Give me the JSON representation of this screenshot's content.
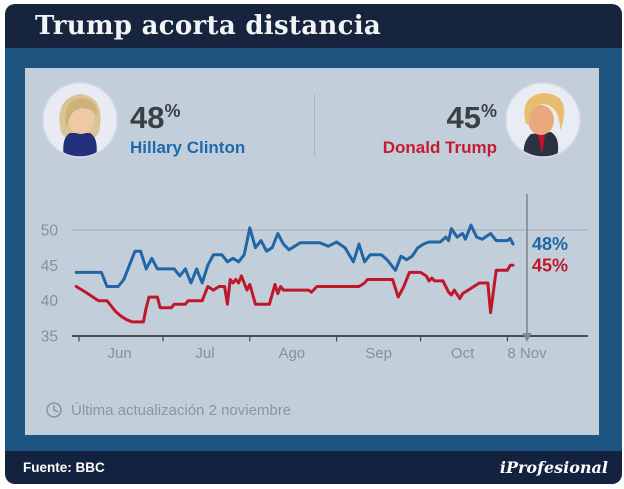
{
  "header": {
    "title": "Trump acorta distancia"
  },
  "candidates": {
    "clinton": {
      "pct": "48",
      "pct_unit": "%",
      "name": "Hillary Clinton",
      "color": "#1d6bad"
    },
    "trump": {
      "pct": "45",
      "pct_unit": "%",
      "name": "Donald Trump",
      "color": "#c41d31"
    }
  },
  "update_note": "Última actualización 2 noviembre",
  "source_bar": {
    "source_label": "Fuente: BBC",
    "brand": "iProfesional"
  },
  "palette": {
    "titlebar": "#16243e",
    "body": "#1e5480",
    "panel": "#c3cedb",
    "sourcebar": "#13233f",
    "clinton_line": "#2166a6",
    "trump_line": "#c0182b"
  },
  "chart_data": {
    "type": "line",
    "title": "",
    "xlabel": "",
    "ylabel": "",
    "ylim": [
      35,
      52
    ],
    "y_ticks": [
      35,
      40,
      45,
      50
    ],
    "gridlines": [
      50
    ],
    "x_ticks_days": [
      2,
      32,
      63,
      94,
      124,
      155
    ],
    "x_labels": [
      {
        "day": 16.5,
        "text": "Jun"
      },
      {
        "day": 47,
        "text": "Jul"
      },
      {
        "day": 78,
        "text": "Ago"
      },
      {
        "day": 109,
        "text": "Sep"
      },
      {
        "day": 139,
        "text": "Oct"
      },
      {
        "day": 162,
        "text": "8 Nov"
      }
    ],
    "marker_day": 162,
    "style": {
      "grid": "#aab5c4",
      "axis": "#4a4e54",
      "tick_text": "#8a909a",
      "marker": "#7e8893"
    },
    "series": [
      {
        "name": "Hillary Clinton",
        "color": "#2166a6",
        "end_label": "48%",
        "points": [
          [
            1,
            44
          ],
          [
            10,
            44
          ],
          [
            12,
            42
          ],
          [
            16,
            42
          ],
          [
            18,
            43
          ],
          [
            20,
            45
          ],
          [
            22,
            47
          ],
          [
            24,
            47
          ],
          [
            26,
            44.5
          ],
          [
            28,
            46
          ],
          [
            30,
            44.5
          ],
          [
            36,
            44.5
          ],
          [
            38,
            43.5
          ],
          [
            40,
            44.5
          ],
          [
            42,
            42.5
          ],
          [
            44,
            44.5
          ],
          [
            46,
            42.5
          ],
          [
            48,
            45
          ],
          [
            50,
            46.5
          ],
          [
            53,
            46.5
          ],
          [
            55,
            45.5
          ],
          [
            57,
            46
          ],
          [
            59,
            45.5
          ],
          [
            61,
            46.5
          ],
          [
            63,
            50.3
          ],
          [
            65,
            47.5
          ],
          [
            67,
            48.5
          ],
          [
            69,
            47
          ],
          [
            71,
            47.5
          ],
          [
            73,
            49.5
          ],
          [
            75,
            48
          ],
          [
            77,
            47.2
          ],
          [
            79,
            47.7
          ],
          [
            81,
            48.2
          ],
          [
            88,
            48.2
          ],
          [
            91,
            47.7
          ],
          [
            94,
            48.3
          ],
          [
            97,
            47.5
          ],
          [
            100,
            45.5
          ],
          [
            102,
            48
          ],
          [
            104,
            45.5
          ],
          [
            106,
            46.5
          ],
          [
            110,
            46.5
          ],
          [
            112,
            45.8
          ],
          [
            115,
            44.3
          ],
          [
            117,
            46.3
          ],
          [
            119,
            45.8
          ],
          [
            121,
            46.3
          ],
          [
            123,
            47.5
          ],
          [
            125,
            48
          ],
          [
            127,
            48.3
          ],
          [
            131,
            48.3
          ],
          [
            133,
            49
          ],
          [
            134,
            48.5
          ],
          [
            135,
            50.2
          ],
          [
            137,
            49
          ],
          [
            139,
            49.5
          ],
          [
            140,
            48.7
          ],
          [
            142,
            50.7
          ],
          [
            144,
            49
          ],
          [
            146,
            48.7
          ],
          [
            149,
            49.5
          ],
          [
            151,
            48.5
          ],
          [
            155,
            48.5
          ],
          [
            156,
            48.8
          ],
          [
            157,
            48
          ]
        ]
      },
      {
        "name": "Donald Trump",
        "color": "#c0182b",
        "end_label": "45%",
        "points": [
          [
            1,
            42
          ],
          [
            4,
            41.3
          ],
          [
            7,
            40.5
          ],
          [
            9,
            40
          ],
          [
            12,
            40
          ],
          [
            13,
            39.5
          ],
          [
            15,
            38.5
          ],
          [
            17,
            37.8
          ],
          [
            19,
            37.3
          ],
          [
            21,
            37
          ],
          [
            25,
            37
          ],
          [
            26,
            39
          ],
          [
            27,
            40.5
          ],
          [
            30,
            40.5
          ],
          [
            31,
            39
          ],
          [
            35,
            39
          ],
          [
            36,
            39.5
          ],
          [
            40,
            39.5
          ],
          [
            41,
            40
          ],
          [
            46,
            40
          ],
          [
            48,
            42
          ],
          [
            50,
            41.5
          ],
          [
            52,
            42
          ],
          [
            54,
            42
          ],
          [
            55,
            39.5
          ],
          [
            56,
            43
          ],
          [
            57,
            42.5
          ],
          [
            58,
            43
          ],
          [
            59,
            42.5
          ],
          [
            60,
            43.5
          ],
          [
            62,
            41.5
          ],
          [
            63,
            42.3
          ],
          [
            65,
            39.5
          ],
          [
            70,
            39.5
          ],
          [
            72,
            42.3
          ],
          [
            73,
            41
          ],
          [
            74,
            42
          ],
          [
            75,
            41.5
          ],
          [
            77,
            41.5
          ],
          [
            84,
            41.5
          ],
          [
            85,
            41.2
          ],
          [
            87,
            42
          ],
          [
            94,
            42
          ],
          [
            102,
            42
          ],
          [
            104,
            42.5
          ],
          [
            105,
            43
          ],
          [
            114,
            43
          ],
          [
            116,
            40.5
          ],
          [
            118,
            42
          ],
          [
            120,
            44
          ],
          [
            124,
            44
          ],
          [
            126,
            43.5
          ],
          [
            127,
            42.8
          ],
          [
            128,
            43.2
          ],
          [
            129,
            42.8
          ],
          [
            132,
            42.8
          ],
          [
            134,
            41.2
          ],
          [
            135,
            40.8
          ],
          [
            136,
            41.5
          ],
          [
            138,
            40.3
          ],
          [
            139,
            41
          ],
          [
            141,
            41.5
          ],
          [
            143,
            42
          ],
          [
            145,
            42.5
          ],
          [
            148,
            42.5
          ],
          [
            149,
            38.3
          ],
          [
            151,
            44.3
          ],
          [
            155,
            44.3
          ],
          [
            156,
            45
          ],
          [
            157,
            45
          ]
        ]
      }
    ]
  }
}
